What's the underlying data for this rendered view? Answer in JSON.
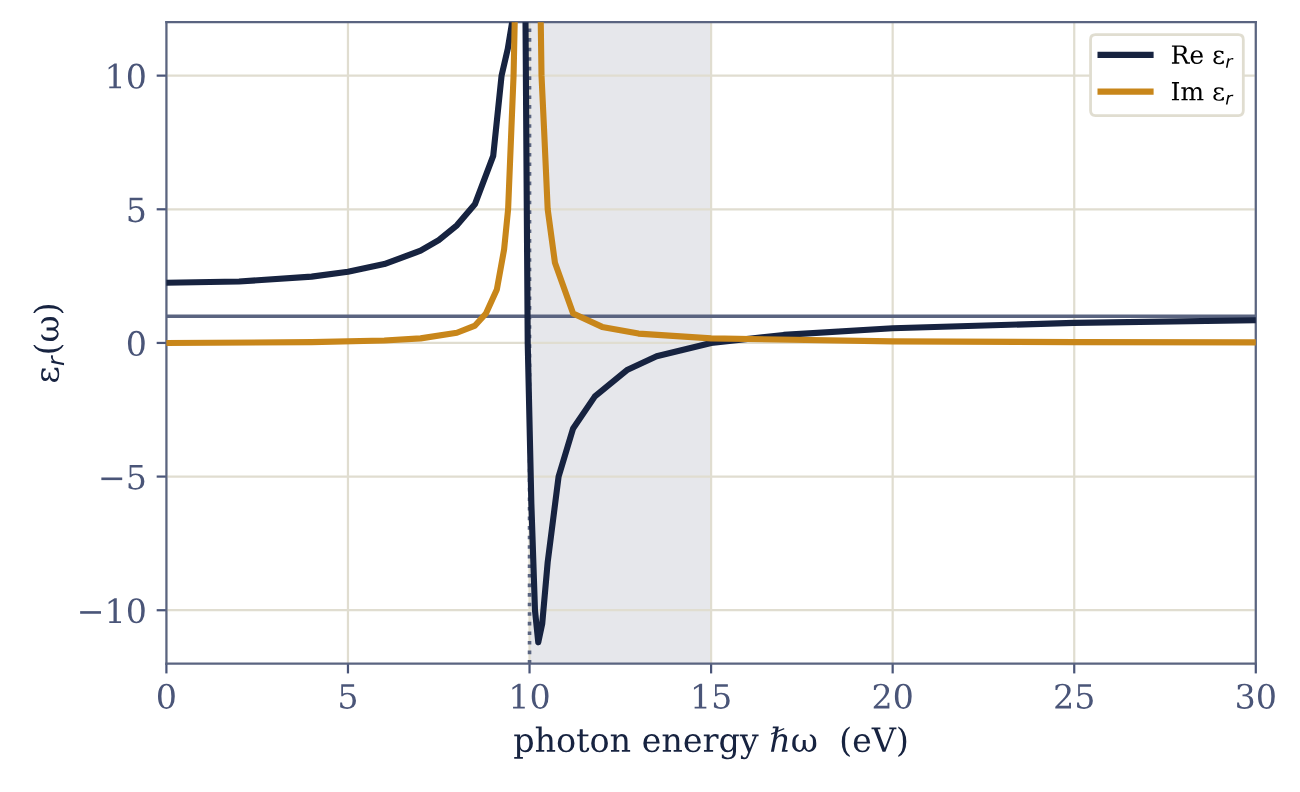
{
  "chart_data": {
    "type": "line",
    "xlabel": "photon energy ℏω  (eV)",
    "ylabel": "ε$_{r}$(ω)",
    "xlim": [
      0,
      30
    ],
    "ylim": [
      -12,
      12
    ],
    "xticks": [
      0,
      5,
      10,
      15,
      20,
      25,
      30
    ],
    "yticks": [
      -10,
      -5,
      0,
      5,
      10
    ],
    "grid": true,
    "legend": "top right",
    "line_style": "solid",
    "marker": "none",
    "series": [
      {
        "name": "Re ε$_{r}$",
        "color": "#172340",
        "x": [
          0,
          2,
          4,
          5,
          6,
          7,
          7.5,
          8,
          8.5,
          9,
          9.23,
          9.4,
          9.51,
          9.52,
          9.88,
          9.89,
          9.95,
          10.05,
          10.15,
          10.24,
          10.35,
          10.5,
          10.8,
          11.2,
          11.8,
          12.7,
          13.5,
          15,
          17,
          20,
          25,
          30
        ],
        "values": [
          2.25,
          2.3,
          2.48,
          2.66,
          2.95,
          3.45,
          3.85,
          4.4,
          5.2,
          7.0,
          10,
          11,
          11.9,
          null,
          null,
          11.9,
          0,
          -6,
          -10,
          -11.2,
          -10.5,
          -8.2,
          -5,
          -3.2,
          -2,
          -1,
          -0.5,
          0,
          0.3,
          0.55,
          0.75,
          0.85
        ]
      },
      {
        "name": "Im ε$_{r}$",
        "color": "#c8861a",
        "x": [
          0,
          4,
          6,
          7,
          8,
          8.5,
          8.8,
          9.1,
          9.3,
          9.41,
          9.5,
          9.56,
          9.59,
          9.6,
          10.3,
          10.31,
          10.33,
          10.4,
          10.5,
          10.7,
          11.2,
          12,
          13,
          15,
          20,
          25,
          30
        ],
        "values": [
          0,
          0.03,
          0.09,
          0.17,
          0.38,
          0.65,
          1.1,
          2,
          3.5,
          5,
          8,
          10,
          11.9,
          null,
          null,
          11.9,
          10,
          8,
          5,
          3,
          1.1,
          0.6,
          0.35,
          0.17,
          0.06,
          0.03,
          0.02
        ]
      }
    ],
    "ref_lines": [
      {
        "axis": "y",
        "value": 1,
        "color": "#5a6480",
        "line_style": "solid"
      },
      {
        "axis": "x",
        "value": 10,
        "color": "#5a6480",
        "line_style": "dotted"
      }
    ],
    "bands": [
      {
        "axis": "x",
        "from": 10,
        "to": 15,
        "color": "#e6e7eb"
      }
    ]
  }
}
